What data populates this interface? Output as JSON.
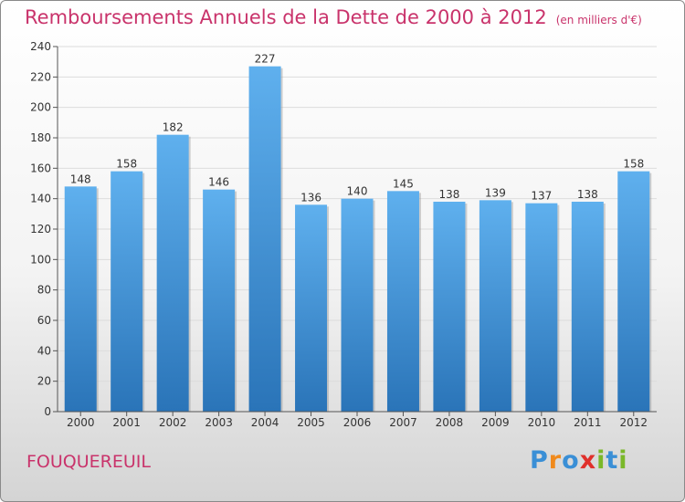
{
  "header": {
    "title": "Remboursements Annuels de la Dette de 2000 à 2012",
    "subtitle": "(en milliers d'€)"
  },
  "footer": {
    "place": "FOUQUEREUIL",
    "logo_letters": [
      "P",
      "r",
      "o",
      "x",
      "i",
      "t",
      "i"
    ],
    "logo_colors": [
      "#3a8fd6",
      "#f08a1c",
      "#3a8fd6",
      "#e0302b",
      "#7ab829",
      "#3a8fd6",
      "#7ab829"
    ]
  },
  "chart_data": {
    "type": "bar",
    "categories": [
      "2000",
      "2001",
      "2002",
      "2003",
      "2004",
      "2005",
      "2006",
      "2007",
      "2008",
      "2009",
      "2010",
      "2011",
      "2012"
    ],
    "values": [
      148,
      158,
      182,
      146,
      227,
      136,
      140,
      145,
      138,
      139,
      137,
      138,
      158
    ],
    "title": "Remboursements Annuels de la Dette de 2000 à 2012",
    "subtitle": "(en milliers d'€)",
    "ylim": [
      0,
      240
    ],
    "yticks": [
      0,
      20,
      40,
      60,
      80,
      100,
      120,
      140,
      160,
      180,
      200,
      220,
      240
    ],
    "grid": true,
    "bar_color": "#4a9ee0",
    "title_color": "#c9336b"
  }
}
